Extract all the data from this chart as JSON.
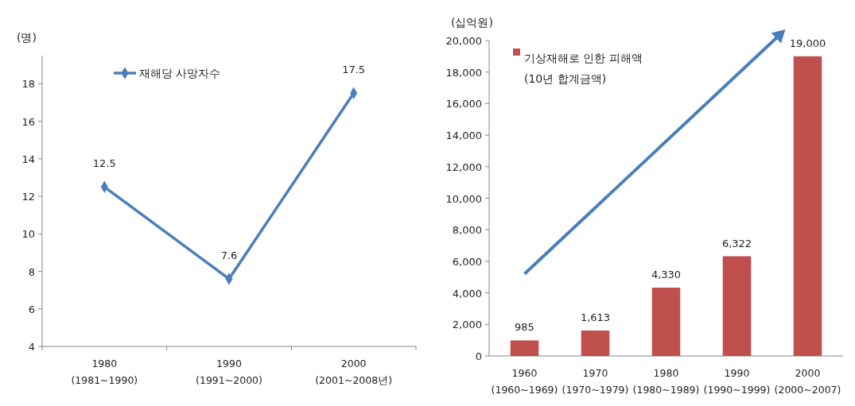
{
  "chart_data": [
    {
      "type": "line",
      "ylabel": "(명)",
      "categories": [
        "1980\n(1981~1990)",
        "1990\n(1991~2000)",
        "2000\n(2001~2008년)"
      ],
      "series": [
        {
          "name": "재해당 사망자수",
          "color": "#4a7ebb",
          "values": [
            12.5,
            7.6,
            17.5
          ]
        }
      ],
      "ylim": [
        4,
        19.5
      ],
      "yticks": [
        4,
        6,
        8,
        10,
        12,
        14,
        16,
        18
      ],
      "data_labels": true,
      "legend": "top left",
      "marker": "diamond",
      "line_style": "solid",
      "grid": false
    },
    {
      "type": "bar",
      "ylabel": "(십억원)",
      "categories": [
        "1960\n(1960~1969)",
        "1970\n(1970~1979)",
        "1980\n(1980~1989)",
        "1990\n(1990~1999)",
        "2000\n(2000~2007)"
      ],
      "series": [
        {
          "name": "기상재해로 인한 피해액\n(10년 합계금액)",
          "color": "#c0504d",
          "values": [
            985,
            1613,
            4330,
            6322,
            19000
          ]
        }
      ],
      "ylim": [
        0,
        20000
      ],
      "yticks": [
        {
          "value": 0,
          "label": "0"
        },
        {
          "value": 2000,
          "label": "2,000"
        },
        {
          "value": 4000,
          "label": "4,000"
        },
        {
          "value": 6000,
          "label": "6,000"
        },
        {
          "value": 8000,
          "label": "8,000"
        },
        {
          "value": 10000,
          "label": "10,000"
        },
        {
          "value": 12000,
          "label": "12,000"
        },
        {
          "value": 14000,
          "label": "14,000"
        },
        {
          "value": 16000,
          "label": "16,000"
        },
        {
          "value": 18000,
          "label": "18,000"
        },
        {
          "value": 20000,
          "label": "20,000"
        }
      ],
      "value_labels": [
        "985",
        "1,613",
        "4,330",
        "6,322",
        "19,000"
      ],
      "legend": "top left",
      "grid": false
    }
  ]
}
